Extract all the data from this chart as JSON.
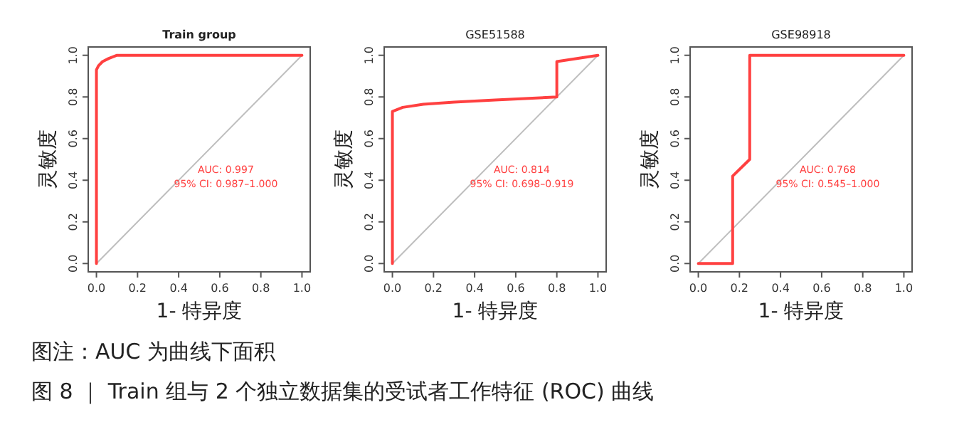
{
  "chart_data": [
    {
      "type": "line",
      "title": "Train group",
      "xlabel": "1- 特异度",
      "ylabel": "灵敏度",
      "xlim": [
        -0.04,
        1.04
      ],
      "ylim": [
        -0.04,
        1.04
      ],
      "xticks": [
        {
          "value": 0,
          "label": "0.0"
        },
        {
          "value": 0.2,
          "label": "0.2"
        },
        {
          "value": 0.4,
          "label": "0.4"
        },
        {
          "value": 0.6,
          "label": "0.6"
        },
        {
          "value": 0.8,
          "label": "0.8"
        },
        {
          "value": 1,
          "label": "1.0"
        }
      ],
      "yticks": [
        {
          "value": 0,
          "label": "0.0"
        },
        {
          "value": 0.2,
          "label": "0.2"
        },
        {
          "value": 0.4,
          "label": "0.4"
        },
        {
          "value": 0.6,
          "label": "0.6"
        },
        {
          "value": 0.8,
          "label": "0.8"
        },
        {
          "value": 1,
          "label": "1.0"
        }
      ],
      "series": [
        {
          "color": "#bebebe",
          "x": [
            0,
            1
          ],
          "values": [
            0,
            1
          ]
        },
        {
          "color": "#ff4040",
          "x": [
            0,
            0,
            0.01,
            0.03,
            0.06,
            0.1,
            1
          ],
          "values": [
            0,
            0.93,
            0.95,
            0.97,
            0.985,
            1,
            1
          ]
        }
      ],
      "annotations": [
        "AUC: 0.997",
        "95% CI: 0.987–1.000"
      ]
    },
    {
      "type": "line",
      "title": "GSE51588",
      "xlabel": "1- 特异度",
      "ylabel": "灵敏度",
      "xlim": [
        -0.04,
        1.04
      ],
      "ylim": [
        -0.04,
        1.04
      ],
      "xticks": [
        {
          "value": 0,
          "label": "0.0"
        },
        {
          "value": 0.2,
          "label": "0.2"
        },
        {
          "value": 0.4,
          "label": "0.4"
        },
        {
          "value": 0.6,
          "label": "0.6"
        },
        {
          "value": 0.8,
          "label": "0.8"
        },
        {
          "value": 1,
          "label": "1.0"
        }
      ],
      "yticks": [
        {
          "value": 0,
          "label": "0.0"
        },
        {
          "value": 0.2,
          "label": "0.2"
        },
        {
          "value": 0.4,
          "label": "0.4"
        },
        {
          "value": 0.6,
          "label": "0.6"
        },
        {
          "value": 0.8,
          "label": "0.8"
        },
        {
          "value": 1,
          "label": "1.0"
        }
      ],
      "series": [
        {
          "color": "#bebebe",
          "x": [
            0,
            1
          ],
          "values": [
            0,
            1
          ]
        },
        {
          "color": "#ff4040",
          "x": [
            0,
            0,
            0.05,
            0.15,
            0.3,
            0.5,
            0.8,
            0.8,
            1
          ],
          "values": [
            0,
            0.73,
            0.75,
            0.765,
            0.775,
            0.785,
            0.8,
            0.97,
            1
          ]
        }
      ],
      "annotations": [
        "AUC: 0.814",
        "95% CI: 0.698–0.919"
      ]
    },
    {
      "type": "line",
      "title": "GSE98918",
      "xlabel": "1- 特异度",
      "ylabel": "灵敏度",
      "xlim": [
        -0.04,
        1.04
      ],
      "ylim": [
        -0.04,
        1.04
      ],
      "xticks": [
        {
          "value": 0,
          "label": "0.0"
        },
        {
          "value": 0.2,
          "label": "0.2"
        },
        {
          "value": 0.4,
          "label": "0.4"
        },
        {
          "value": 0.6,
          "label": "0.6"
        },
        {
          "value": 0.8,
          "label": "0.8"
        },
        {
          "value": 1,
          "label": "1.0"
        }
      ],
      "yticks": [
        {
          "value": 0,
          "label": "0.0"
        },
        {
          "value": 0.2,
          "label": "0.2"
        },
        {
          "value": 0.4,
          "label": "0.4"
        },
        {
          "value": 0.6,
          "label": "0.6"
        },
        {
          "value": 0.8,
          "label": "0.8"
        },
        {
          "value": 1,
          "label": "1.0"
        }
      ],
      "series": [
        {
          "color": "#bebebe",
          "x": [
            0,
            1
          ],
          "values": [
            0,
            1
          ]
        },
        {
          "color": "#ff4040",
          "x": [
            0,
            0.167,
            0.167,
            0.25,
            0.25,
            1
          ],
          "values": [
            0,
            0,
            0.42,
            0.5,
            1,
            1
          ]
        }
      ],
      "annotations": [
        "AUC: 0.768",
        "95% CI: 0.545–1.000"
      ]
    },
    {
      "type": "other",
      "annotations": [
        "图注：AUC 为曲线下面积",
        "图 8 ｜ Train 组与 2 个独立数据集的受试者工作特征 (ROC) 曲线"
      ]
    }
  ]
}
